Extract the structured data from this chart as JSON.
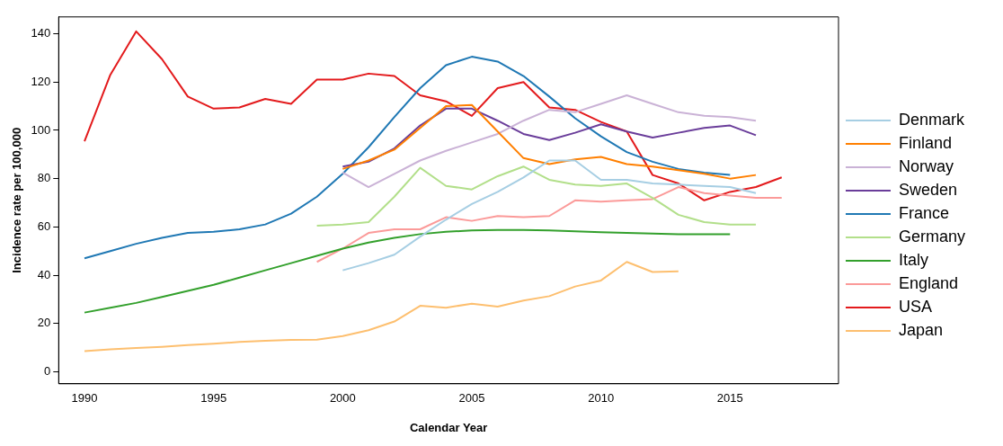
{
  "chart_data": {
    "type": "line",
    "xlabel": "Calendar Year",
    "ylabel": "Incidence rate per 100,000",
    "xlim": [
      1989,
      2019.2
    ],
    "ylim": [
      -5,
      147
    ],
    "xticks": [
      1990,
      1995,
      2000,
      2005,
      2010,
      2015
    ],
    "yticks": [
      0,
      20,
      40,
      60,
      80,
      100,
      120,
      140
    ],
    "grid": false,
    "legend": "right",
    "marker": "none",
    "line_style": "solid",
    "series": [
      {
        "name": "Denmark",
        "color": "#a6cee3",
        "x": [
          2000,
          2001,
          2002,
          2003,
          2004,
          2005,
          2006,
          2007,
          2008,
          2009,
          2010,
          2011,
          2012,
          2013,
          2014,
          2015,
          2016
        ],
        "values": [
          42,
          45,
          48.5,
          56,
          63,
          69.5,
          74.5,
          80.5,
          87.5,
          87.5,
          79.5,
          79.5,
          78,
          77.5,
          77,
          76.5,
          74
        ]
      },
      {
        "name": "Finland",
        "color": "#ff7f00",
        "x": [
          2000,
          2001,
          2002,
          2003,
          2004,
          2005,
          2006,
          2007,
          2008,
          2009,
          2010,
          2011,
          2012,
          2013,
          2014,
          2015,
          2016
        ],
        "values": [
          84,
          87.5,
          92,
          101,
          110,
          110.5,
          99.5,
          88.5,
          86,
          88,
          89,
          86,
          85,
          83.5,
          82,
          80,
          81.5
        ]
      },
      {
        "name": "Norway",
        "color": "#cab2d6",
        "x": [
          2000,
          2001,
          2002,
          2003,
          2004,
          2005,
          2006,
          2007,
          2008,
          2009,
          2010,
          2011,
          2012,
          2013,
          2014,
          2015,
          2016
        ],
        "values": [
          82.5,
          76.5,
          82,
          87.5,
          91.5,
          95,
          98.5,
          104,
          108.5,
          107.5,
          111,
          114.5,
          111,
          107.5,
          106,
          105.5,
          104
        ]
      },
      {
        "name": "Sweden",
        "color": "#6a3d9a",
        "x": [
          2000,
          2001,
          2002,
          2003,
          2004,
          2005,
          2006,
          2007,
          2008,
          2009,
          2010,
          2011,
          2012,
          2013,
          2014,
          2015,
          2016
        ],
        "values": [
          85,
          87,
          92.5,
          102,
          109,
          109,
          104,
          98.5,
          96,
          99,
          102.5,
          99.5,
          97,
          99,
          101,
          102,
          98
        ]
      },
      {
        "name": "France",
        "color": "#1f78b4",
        "x": [
          1990,
          1991,
          1992,
          1993,
          1994,
          1995,
          1996,
          1997,
          1998,
          1999,
          2000,
          2001,
          2002,
          2003,
          2004,
          2005,
          2006,
          2007,
          2008,
          2009,
          2010,
          2011,
          2012,
          2013,
          2014,
          2015
        ],
        "values": [
          47,
          50,
          53,
          55.5,
          57.5,
          58,
          59,
          61,
          65.5,
          72.5,
          82,
          93,
          105.5,
          117.5,
          127,
          130.5,
          128.5,
          122.5,
          114,
          105,
          97.5,
          91,
          87,
          84,
          82.5,
          81.5
        ]
      },
      {
        "name": "Germany",
        "color": "#b2df8a",
        "x": [
          1999,
          2000,
          2001,
          2002,
          2003,
          2004,
          2005,
          2006,
          2007,
          2008,
          2009,
          2010,
          2011,
          2012,
          2013,
          2014,
          2015,
          2016
        ],
        "values": [
          60.5,
          61,
          62,
          72.5,
          84.5,
          77,
          75.5,
          81,
          85,
          79.5,
          77.5,
          77,
          78,
          72,
          65,
          62,
          61,
          61
        ]
      },
      {
        "name": "Italy",
        "color": "#33a02c",
        "x": [
          1990,
          1991,
          1992,
          1993,
          1994,
          1995,
          1996,
          1997,
          1998,
          1999,
          2000,
          2001,
          2002,
          2003,
          2004,
          2005,
          2006,
          2007,
          2008,
          2009,
          2010,
          2011,
          2012,
          2013,
          2014,
          2015
        ],
        "values": [
          24.5,
          26.5,
          28.5,
          31,
          33.5,
          36,
          39,
          42,
          45,
          48,
          51,
          53.5,
          55.5,
          57,
          58,
          58.5,
          58.7,
          58.7,
          58.5,
          58.2,
          57.8,
          57.5,
          57.2,
          57,
          57,
          57
        ]
      },
      {
        "name": "England",
        "color": "#fb9a99",
        "x": [
          1999,
          2000,
          2001,
          2002,
          2003,
          2004,
          2005,
          2006,
          2007,
          2008,
          2009,
          2010,
          2011,
          2012,
          2013,
          2014,
          2015,
          2016,
          2017
        ],
        "values": [
          45.5,
          51,
          57.5,
          59,
          59,
          64,
          62.5,
          64.5,
          64,
          64.5,
          71,
          70.5,
          71,
          71.5,
          76.5,
          74,
          73,
          72,
          72
        ]
      },
      {
        "name": "USA",
        "color": "#e31a1c",
        "x": [
          1990,
          1991,
          1992,
          1993,
          1994,
          1995,
          1996,
          1997,
          1998,
          1999,
          2000,
          2001,
          2002,
          2003,
          2004,
          2005,
          2006,
          2007,
          2008,
          2009,
          2010,
          2011,
          2012,
          2013,
          2014,
          2015,
          2016,
          2017
        ],
        "values": [
          95.5,
          123,
          141,
          129.5,
          114,
          109,
          109.5,
          113,
          111,
          121,
          121,
          123.5,
          122.5,
          114.5,
          112,
          106,
          117.5,
          120,
          109.5,
          108.5,
          103.5,
          99.5,
          81.5,
          78,
          71,
          74.5,
          76.5,
          80.5
        ]
      },
      {
        "name": "Japan",
        "color": "#fdbf6f",
        "x": [
          1990,
          1991,
          1992,
          1993,
          1994,
          1995,
          1996,
          1997,
          1998,
          1999,
          2000,
          2001,
          2002,
          2003,
          2004,
          2005,
          2006,
          2007,
          2008,
          2009,
          2010,
          2011,
          2012,
          2013
        ],
        "values": [
          8.5,
          9.3,
          9.8,
          10.3,
          11,
          11.6,
          12.3,
          12.8,
          13.2,
          13.3,
          14.8,
          17.2,
          20.8,
          27.3,
          26.5,
          28.2,
          27,
          29.5,
          31.3,
          35.3,
          37.8,
          45.5,
          41.3,
          41.6
        ]
      }
    ]
  }
}
